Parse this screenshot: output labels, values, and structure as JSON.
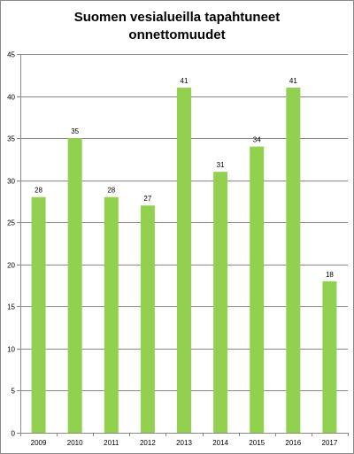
{
  "chart_data": {
    "type": "bar",
    "title_lines": [
      "Suomen vesialueilla tapahtuneet",
      "onnettomuudet"
    ],
    "categories": [
      "2009",
      "2010",
      "2011",
      "2012",
      "2013",
      "2014",
      "2015",
      "2016",
      "2017"
    ],
    "values": [
      28,
      35,
      28,
      27,
      41,
      31,
      34,
      41,
      18
    ],
    "ylim": [
      0,
      45
    ],
    "yticks": [
      0,
      5,
      10,
      15,
      20,
      25,
      30,
      35,
      40,
      45
    ],
    "grid": "horizontal",
    "legend": "none",
    "bar_color": "#92d050",
    "grid_color": "#8a8a8a"
  }
}
